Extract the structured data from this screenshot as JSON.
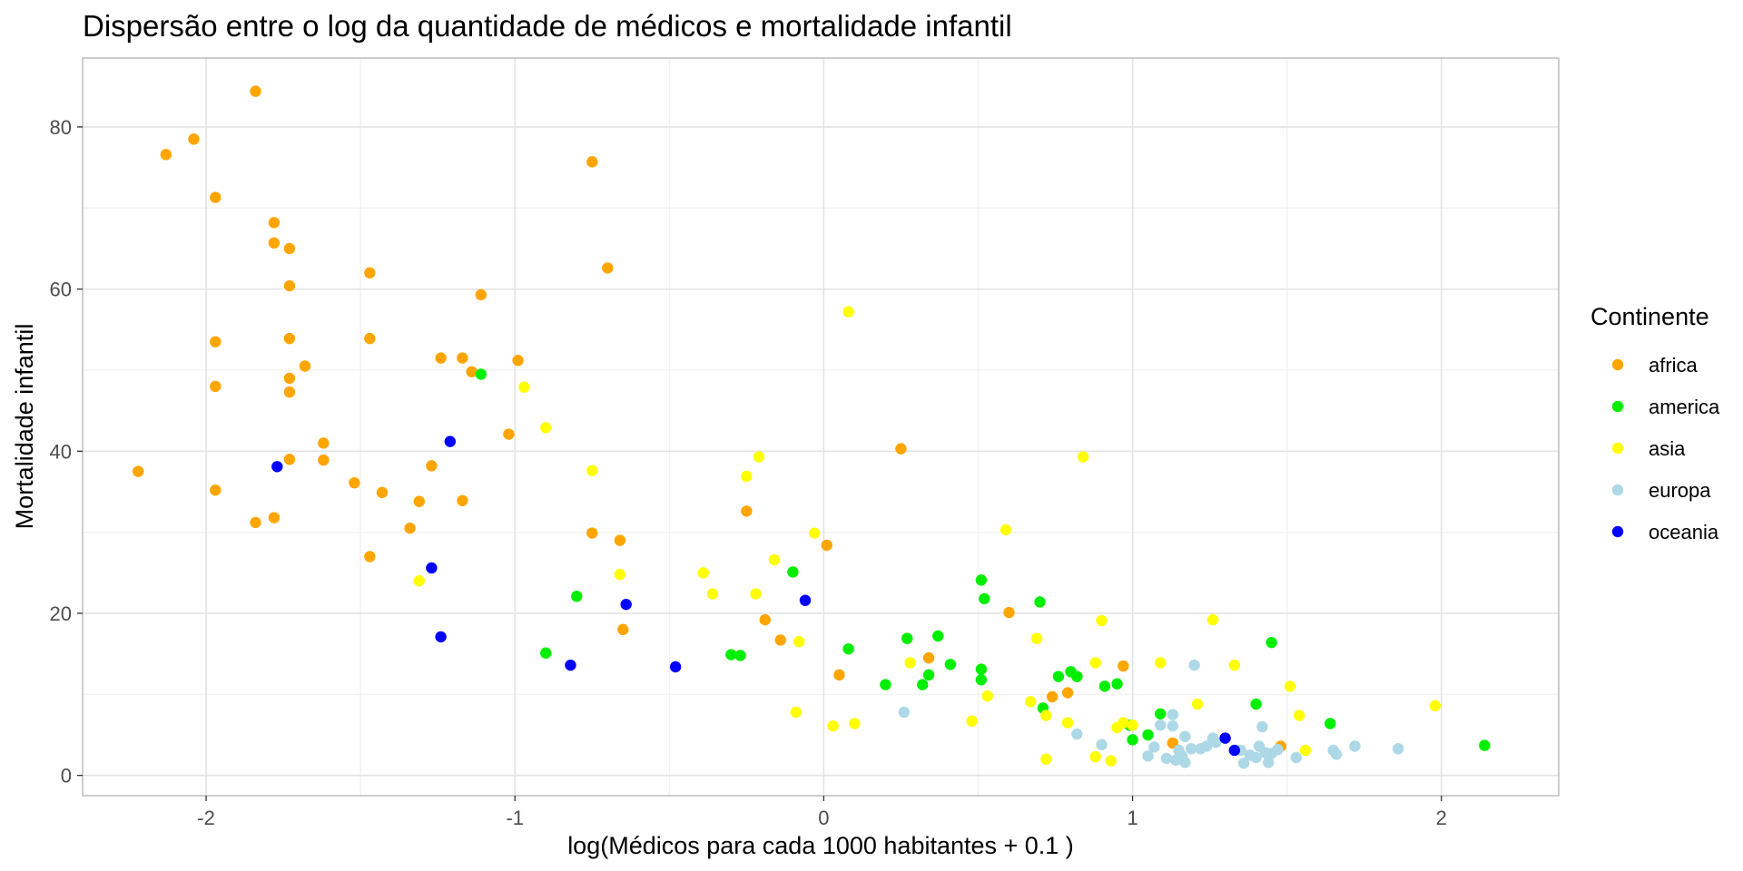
{
  "chart_data": {
    "type": "scatter",
    "title": "Dispersão entre o log da quantidade de médicos e mortalidade infantil",
    "xlabel": "log(Médicos para cada 1000 habitantes  +  0.1 )",
    "ylabel": "Mortalidade infantil",
    "xlim": [
      -2.4,
      2.38
    ],
    "ylim": [
      -2.5,
      88.5
    ],
    "x_ticks": [
      -2,
      -1,
      0,
      1,
      2
    ],
    "x_tick_labels": [
      "-2",
      "-1",
      "0",
      "1",
      "2"
    ],
    "y_ticks": [
      0,
      20,
      40,
      60,
      80
    ],
    "y_tick_labels": [
      "0",
      "20",
      "40",
      "60",
      "80"
    ],
    "grid": true,
    "legend": {
      "title": "Continente",
      "position": "right"
    },
    "series": [
      {
        "name": "africa",
        "color": "#FFA500",
        "points": [
          [
            -2.22,
            37.5
          ],
          [
            -2.13,
            76.6
          ],
          [
            -2.04,
            78.5
          ],
          [
            -1.97,
            71.3
          ],
          [
            -1.97,
            53.5
          ],
          [
            -1.97,
            48
          ],
          [
            -1.97,
            35.2
          ],
          [
            -1.84,
            84.4
          ],
          [
            -1.84,
            31.2
          ],
          [
            -1.78,
            68.2
          ],
          [
            -1.78,
            65.7
          ],
          [
            -1.78,
            31.8
          ],
          [
            -1.73,
            65
          ],
          [
            -1.73,
            60.4
          ],
          [
            -1.73,
            53.9
          ],
          [
            -1.73,
            49
          ],
          [
            -1.73,
            47.3
          ],
          [
            -1.73,
            39
          ],
          [
            -1.68,
            50.5
          ],
          [
            -1.62,
            41
          ],
          [
            -1.62,
            38.9
          ],
          [
            -1.52,
            36.1
          ],
          [
            -1.47,
            62
          ],
          [
            -1.47,
            53.9
          ],
          [
            -1.47,
            27
          ],
          [
            -1.43,
            34.9
          ],
          [
            -1.34,
            30.5
          ],
          [
            -1.31,
            33.8
          ],
          [
            -1.27,
            38.2
          ],
          [
            -1.24,
            51.5
          ],
          [
            -1.17,
            51.5
          ],
          [
            -1.17,
            33.9
          ],
          [
            -1.14,
            49.8
          ],
          [
            -1.11,
            59.3
          ],
          [
            -1.02,
            42.1
          ],
          [
            -0.99,
            51.2
          ],
          [
            -0.75,
            75.7
          ],
          [
            -0.75,
            29.9
          ],
          [
            -0.7,
            62.6
          ],
          [
            -0.66,
            29
          ],
          [
            -0.65,
            18
          ],
          [
            -0.25,
            32.6
          ],
          [
            -0.19,
            19.2
          ],
          [
            -0.14,
            16.7
          ],
          [
            0.01,
            28.4
          ],
          [
            0.05,
            12.4
          ],
          [
            0.25,
            40.3
          ],
          [
            0.34,
            14.5
          ],
          [
            0.6,
            20.1
          ],
          [
            0.74,
            9.7
          ],
          [
            0.79,
            10.2
          ],
          [
            0.97,
            13.5
          ],
          [
            1.13,
            4.0
          ],
          [
            1.48,
            3.6
          ]
        ]
      },
      {
        "name": "america",
        "color": "#00EE00",
        "points": [
          [
            -1.11,
            49.5
          ],
          [
            -0.9,
            15.1
          ],
          [
            -0.8,
            22.1
          ],
          [
            -0.3,
            14.9
          ],
          [
            -0.27,
            14.8
          ],
          [
            -0.1,
            25.1
          ],
          [
            0.08,
            15.6
          ],
          [
            0.2,
            11.2
          ],
          [
            0.27,
            16.9
          ],
          [
            0.32,
            11.2
          ],
          [
            0.34,
            12.4
          ],
          [
            0.37,
            17.2
          ],
          [
            0.41,
            13.7
          ],
          [
            0.51,
            24.1
          ],
          [
            0.51,
            13.1
          ],
          [
            0.51,
            11.8
          ],
          [
            0.52,
            21.8
          ],
          [
            0.7,
            21.4
          ],
          [
            0.71,
            8.3
          ],
          [
            0.76,
            12.2
          ],
          [
            0.8,
            12.8
          ],
          [
            0.82,
            12.2
          ],
          [
            0.91,
            11.0
          ],
          [
            0.95,
            11.3
          ],
          [
            0.99,
            6.2
          ],
          [
            1.0,
            4.4
          ],
          [
            1.05,
            5.0
          ],
          [
            1.09,
            7.6
          ],
          [
            1.4,
            8.8
          ],
          [
            1.45,
            16.4
          ],
          [
            1.64,
            6.4
          ],
          [
            2.14,
            3.7
          ]
        ]
      },
      {
        "name": "asia",
        "color": "#FFFF00",
        "points": [
          [
            -1.31,
            24
          ],
          [
            -0.97,
            47.9
          ],
          [
            -0.9,
            42.9
          ],
          [
            -0.75,
            37.6
          ],
          [
            -0.66,
            24.8
          ],
          [
            -0.39,
            25
          ],
          [
            -0.36,
            22.4
          ],
          [
            -0.25,
            36.9
          ],
          [
            -0.21,
            39.3
          ],
          [
            -0.22,
            22.4
          ],
          [
            -0.16,
            26.6
          ],
          [
            -0.09,
            7.8
          ],
          [
            -0.08,
            16.5
          ],
          [
            -0.03,
            29.9
          ],
          [
            0.03,
            6.1
          ],
          [
            0.08,
            57.2
          ],
          [
            0.1,
            6.4
          ],
          [
            0.28,
            13.9
          ],
          [
            0.48,
            6.7
          ],
          [
            0.53,
            9.8
          ],
          [
            0.59,
            30.3
          ],
          [
            0.67,
            9.1
          ],
          [
            0.69,
            16.9
          ],
          [
            0.72,
            7.4
          ],
          [
            0.72,
            2.0
          ],
          [
            0.79,
            6.5
          ],
          [
            0.84,
            39.3
          ],
          [
            0.88,
            13.9
          ],
          [
            0.88,
            2.3
          ],
          [
            0.9,
            19.1
          ],
          [
            0.93,
            1.8
          ],
          [
            0.95,
            5.9
          ],
          [
            0.97,
            6.5
          ],
          [
            1.0,
            6.2
          ],
          [
            1.09,
            13.9
          ],
          [
            1.21,
            8.8
          ],
          [
            1.26,
            19.2
          ],
          [
            1.33,
            13.6
          ],
          [
            1.51,
            11.0
          ],
          [
            1.54,
            7.4
          ],
          [
            1.56,
            3.1
          ],
          [
            1.98,
            8.6
          ]
        ]
      },
      {
        "name": "europa",
        "color": "#ADD8E6",
        "points": [
          [
            0.26,
            7.8
          ],
          [
            0.82,
            5.1
          ],
          [
            0.9,
            3.8
          ],
          [
            1.05,
            2.4
          ],
          [
            1.07,
            3.5
          ],
          [
            1.09,
            6.2
          ],
          [
            1.11,
            2.1
          ],
          [
            1.13,
            7.5
          ],
          [
            1.13,
            6.1
          ],
          [
            1.14,
            1.9
          ],
          [
            1.15,
            3.1
          ],
          [
            1.16,
            2.4
          ],
          [
            1.17,
            1.6
          ],
          [
            1.17,
            4.8
          ],
          [
            1.19,
            3.3
          ],
          [
            1.2,
            13.6
          ],
          [
            1.22,
            3.3
          ],
          [
            1.24,
            3.6
          ],
          [
            1.26,
            4.6
          ],
          [
            1.27,
            4.1
          ],
          [
            1.35,
            3.1
          ],
          [
            1.36,
            1.5
          ],
          [
            1.38,
            2.5
          ],
          [
            1.4,
            2.2
          ],
          [
            1.41,
            3.6
          ],
          [
            1.42,
            6.0
          ],
          [
            1.43,
            2.8
          ],
          [
            1.44,
            1.6
          ],
          [
            1.45,
            2.7
          ],
          [
            1.47,
            3.2
          ],
          [
            1.53,
            2.2
          ],
          [
            1.65,
            3.1
          ],
          [
            1.66,
            2.6
          ],
          [
            1.72,
            3.6
          ],
          [
            1.86,
            3.3
          ]
        ]
      },
      {
        "name": "oceania",
        "color": "#0000FF",
        "points": [
          [
            -1.77,
            38.1
          ],
          [
            -1.21,
            41.2
          ],
          [
            -1.27,
            25.6
          ],
          [
            -1.24,
            17.1
          ],
          [
            -0.82,
            13.6
          ],
          [
            -0.64,
            21.1
          ],
          [
            -0.48,
            13.4
          ],
          [
            -0.06,
            21.6
          ],
          [
            1.3,
            4.6
          ],
          [
            1.33,
            3.1
          ]
        ]
      }
    ]
  }
}
